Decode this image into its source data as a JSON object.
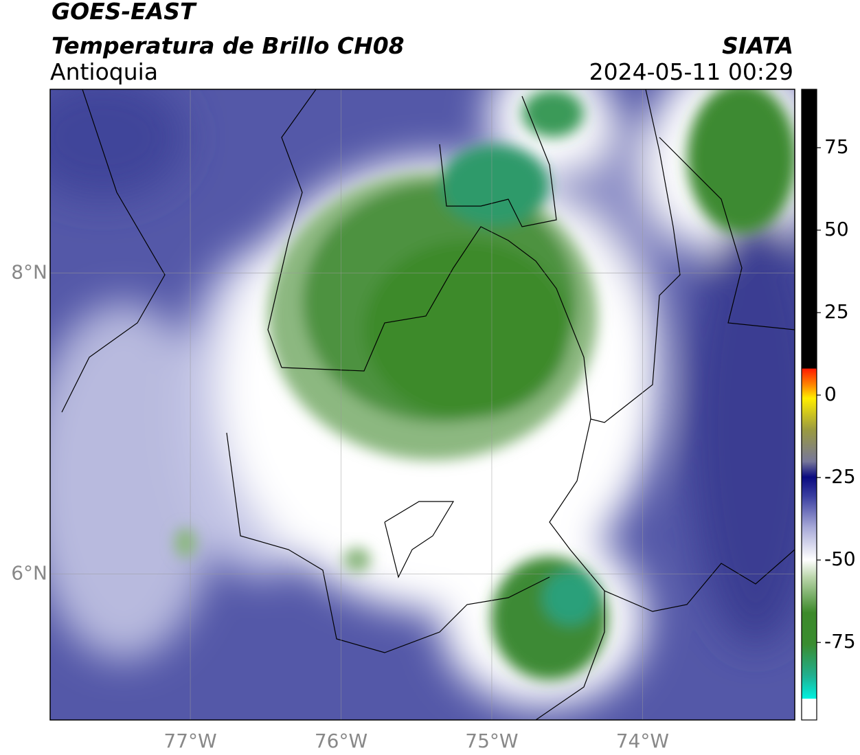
{
  "header": {
    "title": "GOES-EAST",
    "subtitle": "Temperatura de Brillo CH08",
    "region": "Antioquia",
    "source": "SIATA",
    "datetime": "2024-05-11 00:29"
  },
  "map": {
    "xlim": [
      -77.93,
      -72.99
    ],
    "ylim": [
      5.03,
      9.22
    ],
    "xticks": [
      {
        "value": -77,
        "label": "77°W"
      },
      {
        "value": -76,
        "label": "76°W"
      },
      {
        "value": -75,
        "label": "75°W"
      },
      {
        "value": -74,
        "label": "74°W"
      }
    ],
    "yticks": [
      {
        "value": 8,
        "label": "8°N"
      },
      {
        "value": 6,
        "label": "6°N"
      }
    ],
    "grid": true
  },
  "colorbar": {
    "lim": [
      -98.5,
      92.7
    ],
    "ticks": [
      75,
      50,
      25,
      0,
      -25,
      -50,
      -75
    ]
  }
}
